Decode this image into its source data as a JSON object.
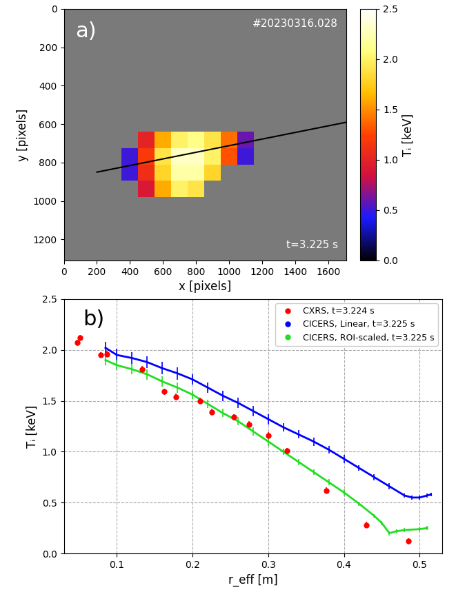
{
  "chart_data": [
    {
      "type": "heatmap",
      "panel_label": "a)",
      "shot": "#20230316.028",
      "time_label": "t=3.225 s",
      "x_label": "x [pixels]",
      "y_label": "y [pixels]",
      "xlim": [
        0,
        1710
      ],
      "ylim": [
        1310,
        0
      ],
      "xticks": [
        0,
        200,
        400,
        600,
        800,
        1000,
        1200,
        1400,
        1600
      ],
      "yticks": [
        0,
        200,
        400,
        600,
        800,
        1000,
        1200
      ],
      "x_edges": [
        350,
        450,
        550,
        650,
        750,
        850,
        950,
        1050,
        1150
      ],
      "y_edges": [
        640,
        725,
        810,
        895,
        980
      ],
      "cells": [
        [
          null,
          1.0,
          1.6,
          2.0,
          2.1,
          1.9,
          1.4,
          0.6
        ],
        [
          0.5,
          1.2,
          1.9,
          2.3,
          2.3,
          2.0,
          1.3,
          0.5
        ],
        [
          0.5,
          1.1,
          1.8,
          2.2,
          2.2,
          1.8,
          null,
          null
        ],
        [
          null,
          0.9,
          1.6,
          2.0,
          1.9,
          null,
          null,
          null
        ]
      ],
      "line": {
        "x": [
          200,
          1710
        ],
        "y": [
          850,
          590
        ],
        "color": "black"
      },
      "colorbar_label": "Tᵢ [keV]",
      "colorbar_range": [
        0.0,
        2.5
      ],
      "colorbar_ticks": [
        0.0,
        0.5,
        1.0,
        1.5,
        2.0,
        2.5
      ]
    },
    {
      "type": "line",
      "panel_label": "b)",
      "x_label": "r_eff [m]",
      "y_label": "Tᵢ [keV]",
      "xlim": [
        0.03,
        0.53
      ],
      "ylim": [
        0.0,
        2.5
      ],
      "xticks": [
        0.1,
        0.2,
        0.3,
        0.4,
        0.5
      ],
      "yticks": [
        0.0,
        0.5,
        1.0,
        1.5,
        2.0,
        2.5
      ],
      "grid": true,
      "legend": "upper right",
      "series": [
        {
          "name": "CXRS, t=3.224 s",
          "color": "red",
          "type": "scatter",
          "marker": "circle",
          "x": [
            0.048,
            0.051,
            0.079,
            0.087,
            0.133,
            0.163,
            0.178,
            0.21,
            0.225,
            0.255,
            0.275,
            0.3,
            0.325,
            0.377,
            0.43,
            0.485
          ],
          "values": [
            2.07,
            2.12,
            1.95,
            1.96,
            1.81,
            1.59,
            1.54,
            1.5,
            1.39,
            1.34,
            1.27,
            1.16,
            1.01,
            0.62,
            0.28,
            0.12
          ],
          "errors": [
            0.03,
            0.03,
            0.03,
            0.03,
            0.03,
            0.03,
            0.03,
            0.03,
            0.03,
            0.03,
            0.03,
            0.03,
            0.03,
            0.03,
            0.03,
            0.03
          ]
        },
        {
          "name": "CICERS, Linear, t=3.225 s",
          "color": "blue",
          "type": "line",
          "x": [
            0.085,
            0.1,
            0.12,
            0.14,
            0.16,
            0.18,
            0.2,
            0.22,
            0.24,
            0.26,
            0.28,
            0.3,
            0.32,
            0.34,
            0.36,
            0.38,
            0.4,
            0.42,
            0.44,
            0.46,
            0.48,
            0.49,
            0.5,
            0.51,
            0.515
          ],
          "values": [
            2.02,
            1.95,
            1.92,
            1.88,
            1.82,
            1.77,
            1.71,
            1.63,
            1.55,
            1.48,
            1.4,
            1.32,
            1.24,
            1.17,
            1.1,
            1.02,
            0.93,
            0.84,
            0.75,
            0.66,
            0.57,
            0.55,
            0.55,
            0.57,
            0.58
          ],
          "errors": [
            0.06,
            0.06,
            0.06,
            0.06,
            0.06,
            0.06,
            0.05,
            0.05,
            0.05,
            0.05,
            0.05,
            0.05,
            0.04,
            0.04,
            0.04,
            0.04,
            0.04,
            0.03,
            0.03,
            0.03,
            0.02,
            0.02,
            0.02,
            0.02,
            0.02
          ]
        },
        {
          "name": "CICERS, ROI-scaled, t=3.225 s",
          "color": "#22dd22",
          "type": "line",
          "x": [
            0.085,
            0.1,
            0.12,
            0.14,
            0.16,
            0.18,
            0.2,
            0.22,
            0.24,
            0.26,
            0.28,
            0.3,
            0.32,
            0.34,
            0.36,
            0.38,
            0.4,
            0.42,
            0.44,
            0.45,
            0.46,
            0.47,
            0.48,
            0.5,
            0.51
          ],
          "values": [
            1.9,
            1.85,
            1.81,
            1.76,
            1.69,
            1.63,
            1.56,
            1.47,
            1.38,
            1.3,
            1.2,
            1.1,
            1.0,
            0.9,
            0.8,
            0.7,
            0.6,
            0.49,
            0.37,
            0.3,
            0.2,
            0.22,
            0.23,
            0.24,
            0.25
          ],
          "errors": [
            0.05,
            0.05,
            0.05,
            0.05,
            0.05,
            0.05,
            0.04,
            0.04,
            0.04,
            0.04,
            0.04,
            0.04,
            0.03,
            0.03,
            0.03,
            0.03,
            0.03,
            0.02,
            0.02,
            0.02,
            0.02,
            0.02,
            0.02,
            0.02,
            0.02
          ]
        }
      ]
    }
  ]
}
